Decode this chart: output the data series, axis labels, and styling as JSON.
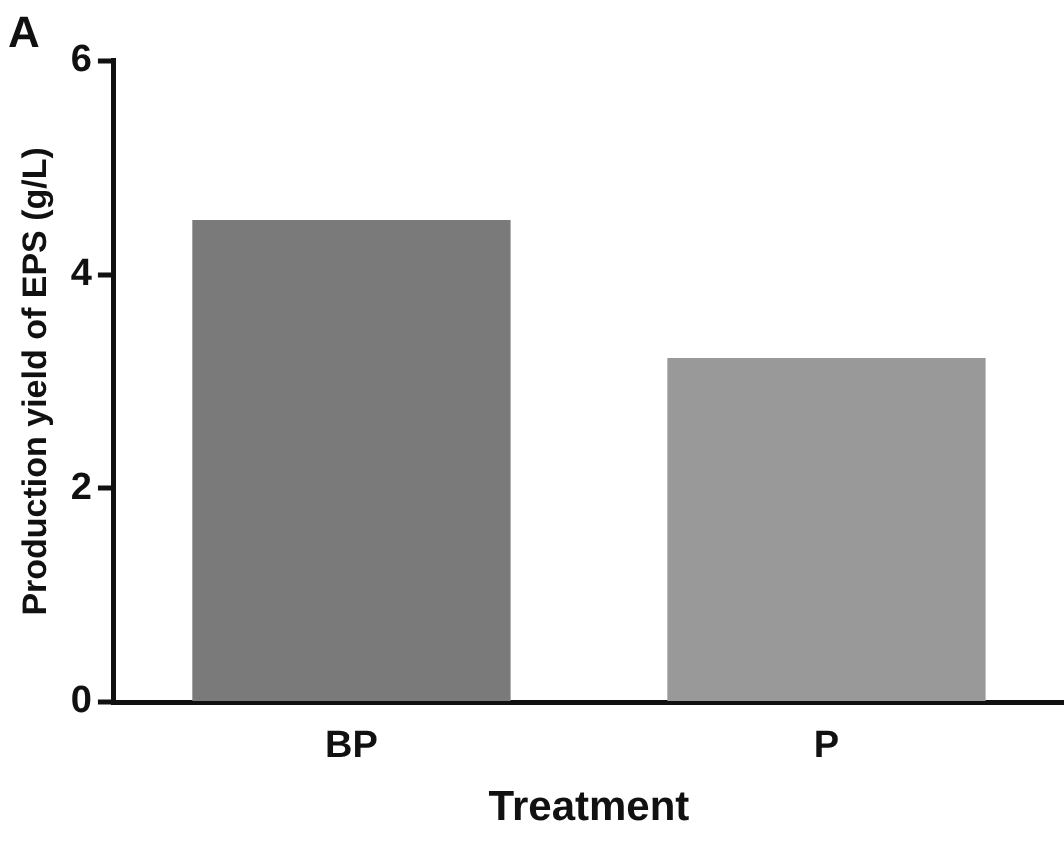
{
  "chart_data": {
    "type": "bar",
    "title": "A",
    "xlabel": "Treatment",
    "ylabel": "Production yield of EPS (g/L)",
    "categories": [
      "BP",
      "P"
    ],
    "values": [
      4.51,
      3.22
    ],
    "colors": [
      "#7a7a7a",
      "#999999"
    ],
    "ylim": [
      0,
      6
    ],
    "yticks": [
      0,
      2,
      4,
      6
    ],
    "grid": false,
    "legend": false
  }
}
